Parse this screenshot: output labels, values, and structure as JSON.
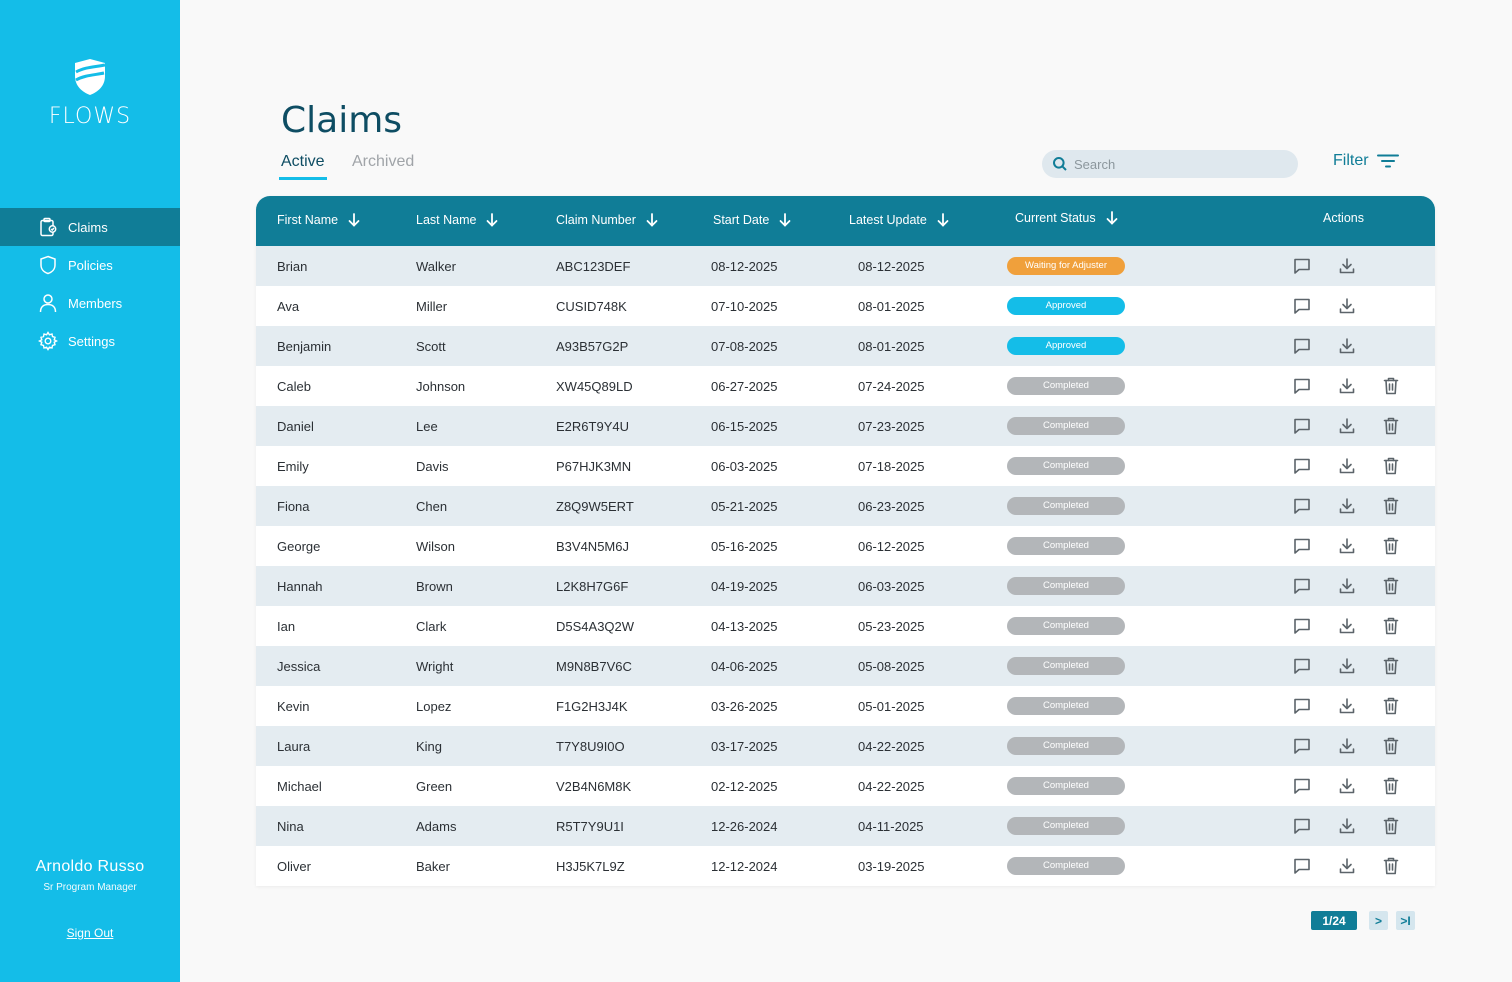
{
  "app": {
    "logo_text": "FLOWS"
  },
  "sidebar": {
    "items": [
      {
        "label": "Claims",
        "icon": "clipboard-icon",
        "active": true
      },
      {
        "label": "Policies",
        "icon": "shield-icon",
        "active": false
      },
      {
        "label": "Members",
        "icon": "user-icon",
        "active": false
      },
      {
        "label": "Settings",
        "icon": "gear-icon",
        "active": false
      }
    ],
    "user": {
      "name": "Arnoldo Russo",
      "role": "Sr Program Manager"
    },
    "signout_label": "Sign Out"
  },
  "page": {
    "title": "Claims",
    "tabs": [
      {
        "label": "Active",
        "active": true
      },
      {
        "label": "Archived",
        "active": false
      }
    ],
    "search": {
      "placeholder": "Search",
      "value": ""
    },
    "filter_label": "Filter"
  },
  "table": {
    "columns": [
      "First Name",
      "Last Name",
      "Claim Number",
      "Start Date",
      "Latest Update",
      "Current Status",
      "Actions"
    ],
    "rows": [
      {
        "first": "Brian",
        "last": "Walker",
        "claim": "ABC123DEF",
        "start": "08-12-2025",
        "update": "08-12-2025",
        "status": "Waiting for Adjuster",
        "status_type": "waiting",
        "deletable": false
      },
      {
        "first": "Ava",
        "last": "Miller",
        "claim": "CUSID748K",
        "start": "07-10-2025",
        "update": "08-01-2025",
        "status": "Approved",
        "status_type": "approved",
        "deletable": false
      },
      {
        "first": "Benjamin",
        "last": "Scott",
        "claim": "A93B57G2P",
        "start": "07-08-2025",
        "update": "08-01-2025",
        "status": "Approved",
        "status_type": "approved",
        "deletable": false
      },
      {
        "first": "Caleb",
        "last": "Johnson",
        "claim": "XW45Q89LD",
        "start": "06-27-2025",
        "update": "07-24-2025",
        "status": "Completed",
        "status_type": "completed",
        "deletable": true
      },
      {
        "first": "Daniel",
        "last": "Lee",
        "claim": "E2R6T9Y4U",
        "start": "06-15-2025",
        "update": "07-23-2025",
        "status": "Completed",
        "status_type": "completed",
        "deletable": true
      },
      {
        "first": "Emily",
        "last": "Davis",
        "claim": "P67HJK3MN",
        "start": "06-03-2025",
        "update": "07-18-2025",
        "status": "Completed",
        "status_type": "completed",
        "deletable": true
      },
      {
        "first": "Fiona",
        "last": "Chen",
        "claim": "Z8Q9W5ERT",
        "start": "05-21-2025",
        "update": "06-23-2025",
        "status": "Completed",
        "status_type": "completed",
        "deletable": true
      },
      {
        "first": "George",
        "last": "Wilson",
        "claim": "B3V4N5M6J",
        "start": "05-16-2025",
        "update": "06-12-2025",
        "status": "Completed",
        "status_type": "completed",
        "deletable": true
      },
      {
        "first": "Hannah",
        "last": "Brown",
        "claim": "L2K8H7G6F",
        "start": "04-19-2025",
        "update": "06-03-2025",
        "status": "Completed",
        "status_type": "completed",
        "deletable": true
      },
      {
        "first": "Ian",
        "last": "Clark",
        "claim": "D5S4A3Q2W",
        "start": "04-13-2025",
        "update": "05-23-2025",
        "status": "Completed",
        "status_type": "completed",
        "deletable": true
      },
      {
        "first": "Jessica",
        "last": "Wright",
        "claim": "M9N8B7V6C",
        "start": "04-06-2025",
        "update": "05-08-2025",
        "status": "Completed",
        "status_type": "completed",
        "deletable": true
      },
      {
        "first": "Kevin",
        "last": "Lopez",
        "claim": "F1G2H3J4K",
        "start": "03-26-2025",
        "update": "05-01-2025",
        "status": "Completed",
        "status_type": "completed",
        "deletable": true
      },
      {
        "first": "Laura",
        "last": "King",
        "claim": "T7Y8U9I0O",
        "start": "03-17-2025",
        "update": "04-22-2025",
        "status": "Completed",
        "status_type": "completed",
        "deletable": true
      },
      {
        "first": "Michael",
        "last": "Green",
        "claim": "V2B4N6M8K",
        "start": "02-12-2025",
        "update": "04-22-2025",
        "status": "Completed",
        "status_type": "completed",
        "deletable": true
      },
      {
        "first": "Nina",
        "last": "Adams",
        "claim": "R5T7Y9U1I",
        "start": "12-26-2024",
        "update": "04-11-2025",
        "status": "Completed",
        "status_type": "completed",
        "deletable": true
      },
      {
        "first": "Oliver",
        "last": "Baker",
        "claim": "H3J5K7L9Z",
        "start": "12-12-2024",
        "update": "03-19-2025",
        "status": "Completed",
        "status_type": "completed",
        "deletable": true
      }
    ]
  },
  "pagination": {
    "current": "1/24",
    "next_label": ">",
    "last_label": ">I"
  },
  "colors": {
    "sidebar": "#14bde8",
    "primary_dark": "#107d97",
    "title": "#0e4d63",
    "waiting": "#f0a03b",
    "approved": "#14bde8",
    "completed": "#b3b6b9",
    "row_alt": "#e4ecf1"
  }
}
